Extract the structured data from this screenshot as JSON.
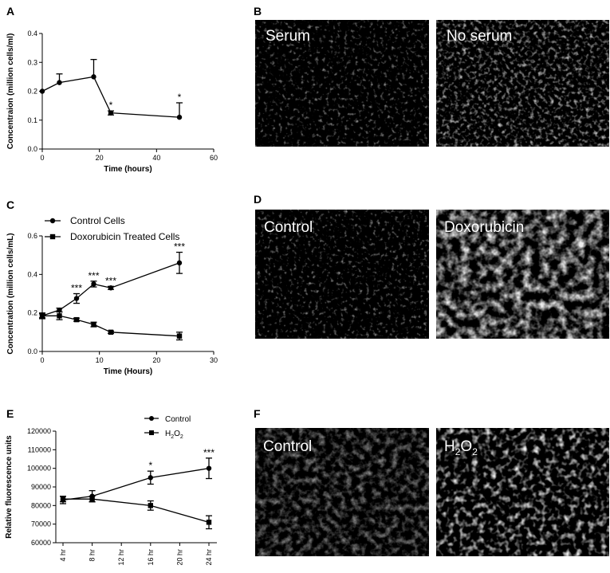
{
  "panel_labels": {
    "A": "A",
    "B": "B",
    "C": "C",
    "D": "D",
    "E": "E",
    "F": "F"
  },
  "micrographs": [
    {
      "panel": "B",
      "images": [
        {
          "label": "Serum",
          "brightness": "sparse"
        },
        {
          "label": "No serum",
          "brightness": "medium"
        }
      ]
    },
    {
      "panel": "D",
      "images": [
        {
          "label": "Control",
          "brightness": "sparse"
        },
        {
          "label": "Doxorubicin",
          "brightness": "dense"
        }
      ]
    },
    {
      "panel": "F",
      "images": [
        {
          "label": "Control",
          "brightness": "faint"
        },
        {
          "label_main": "H",
          "label_sub": "2",
          "label_main2": "O",
          "label_sub2": "2",
          "brightness": "nuclei"
        }
      ]
    }
  ],
  "chart_data": [
    {
      "panel": "A",
      "type": "line",
      "title": "",
      "xlabel": "Time  (hours)",
      "ylabel": "Concentraion (million cells/ml)",
      "xlim": [
        0,
        60
      ],
      "ylim": [
        0,
        0.4
      ],
      "xticks": [
        "0",
        "20",
        "40",
        "60"
      ],
      "yticks": [
        "0.0",
        "0.1",
        "0.2",
        "0.3",
        "0.4"
      ],
      "series": [
        {
          "name": "",
          "marker": "circle",
          "x": [
            0,
            6,
            18,
            24,
            48
          ],
          "y": [
            0.2,
            0.23,
            0.25,
            0.125,
            0.11
          ],
          "err": [
            0,
            0.03,
            0.06,
            0.007,
            0.05
          ],
          "err_dir": [
            "both",
            "up",
            "up",
            "both",
            "up"
          ],
          "annotations": [
            "",
            "",
            "",
            "*",
            "*"
          ]
        }
      ]
    },
    {
      "panel": "C",
      "type": "line",
      "title": "",
      "xlabel": "Time  (Hours)",
      "ylabel": "Concentration (million cells/mL)",
      "xlim": [
        0,
        30
      ],
      "ylim": [
        0,
        0.6
      ],
      "xticks": [
        "0",
        "10",
        "20",
        "30"
      ],
      "yticks": [
        "0.0",
        "0.2",
        "0.4",
        "0.6"
      ],
      "legend": "top-left",
      "series": [
        {
          "name": "Control Cells",
          "marker": "circle",
          "x": [
            0,
            3,
            6,
            9,
            12,
            24
          ],
          "y": [
            0.185,
            0.215,
            0.275,
            0.35,
            0.33,
            0.46
          ],
          "err": [
            0.01,
            0.01,
            0.025,
            0.015,
            0.008,
            0.055
          ],
          "annotations": [
            "",
            "",
            "***",
            "***",
            "***",
            "***"
          ]
        },
        {
          "name": "Doxorubicin Treated Cells",
          "marker": "square",
          "x": [
            0,
            3,
            6,
            9,
            12,
            24
          ],
          "y": [
            0.185,
            0.185,
            0.165,
            0.14,
            0.1,
            0.08
          ],
          "err": [
            0.015,
            0.02,
            0.008,
            0.012,
            0.006,
            0.02
          ],
          "annotations": [
            "",
            "",
            "",
            "",
            "",
            ""
          ]
        }
      ]
    },
    {
      "panel": "E",
      "type": "line",
      "title": "",
      "xlabel": "",
      "ylabel": "Relative fluorescence units",
      "categories": [
        "4 hr",
        "8 hr",
        "12 hr",
        "16 hr",
        "20 hr",
        "24 hr"
      ],
      "ylim": [
        60000,
        120000
      ],
      "yticks": [
        "60000",
        "70000",
        "80000",
        "90000",
        "100000",
        "110000",
        "120000"
      ],
      "legend": "top-center",
      "series": [
        {
          "name": "Control",
          "marker": "circle",
          "x": [
            4,
            8,
            16,
            24
          ],
          "y": [
            83000,
            85000,
            95000,
            100000
          ],
          "err": [
            2000,
            3000,
            3500,
            5500
          ],
          "annotations": [
            "",
            "",
            "*",
            "***"
          ]
        },
        {
          "name_main": "H",
          "name_sub": "2",
          "name_main2": "O",
          "name_sub2": "2",
          "marker": "square",
          "x": [
            4,
            8,
            16,
            24
          ],
          "y": [
            83500,
            83500,
            80000,
            71000
          ],
          "err": [
            1500,
            1500,
            2500,
            3500
          ],
          "annotations": [
            "",
            "",
            "",
            ""
          ]
        }
      ]
    }
  ]
}
